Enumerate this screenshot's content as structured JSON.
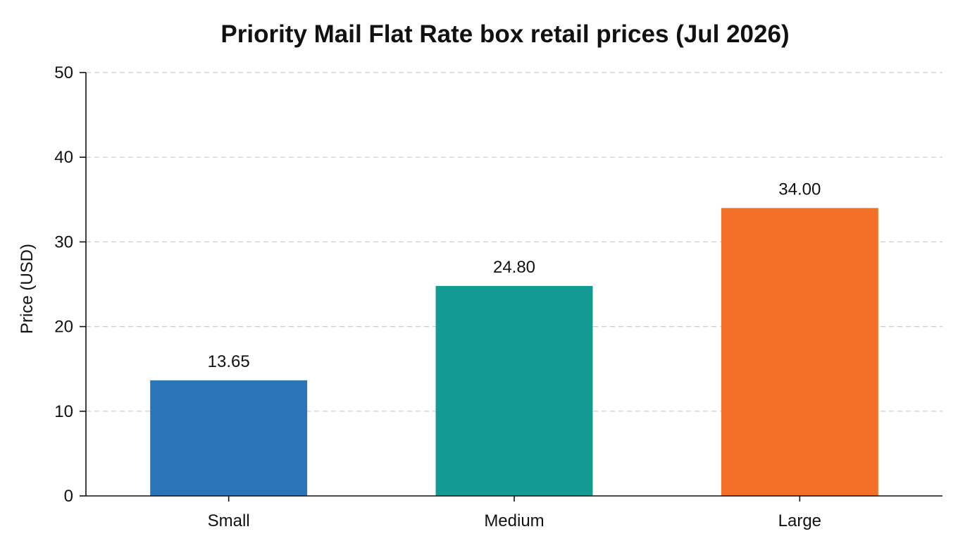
{
  "chart_data": {
    "type": "bar",
    "title": "Priority Mail Flat Rate box retail prices (Jul 2026)",
    "xlabel": "",
    "ylabel": "Price (USD)",
    "categories": [
      "Small",
      "Medium",
      "Large"
    ],
    "values": [
      13.65,
      24.8,
      34.0
    ],
    "value_labels": [
      "13.65",
      "24.80",
      "34.00"
    ],
    "colors": [
      "#2a74b8",
      "#139b93",
      "#f27126"
    ],
    "ylim": [
      0,
      50
    ],
    "yticks": [
      0,
      10,
      20,
      30,
      40,
      50
    ],
    "grid": "y-dashed",
    "legend": "none"
  }
}
